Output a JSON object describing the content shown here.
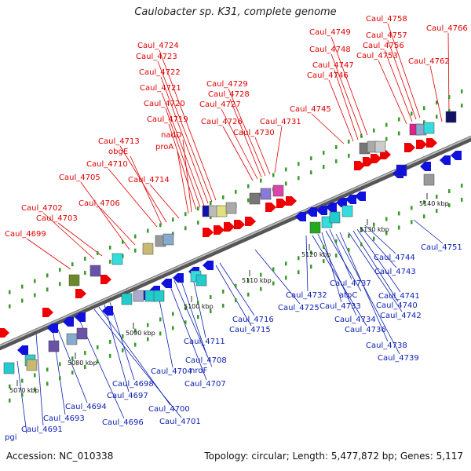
{
  "title": "Caulobacter sp. K31, complete genome",
  "footer": {
    "accession": "Accession: NC_010338",
    "summary": "Topology: circular; Length: 5,477,872 bp; Genes: 5,117"
  },
  "colors": {
    "forward": "#ee0000",
    "reverse": "#1111dd",
    "label_red": "#e00000",
    "label_blue": "#0a1fb0",
    "tick": "#3a9a2a"
  },
  "ticks": [
    "5070 kbp",
    "5080 kbp",
    "5090 kbp",
    "5100 kbp",
    "5110 kbp",
    "5120 kbp",
    "5130 kbp",
    "5140 kbp"
  ],
  "top_labels": [
    "Caul_4766",
    "Caul_4758",
    "Caul_4757",
    "Caul_4756",
    "Caul_4753",
    "Caul_4762",
    "Caul_4749",
    "Caul_4748",
    "Caul_4747",
    "Caul_4746",
    "Caul_4745",
    "Caul_4731",
    "Caul_4730",
    "Caul_4729",
    "Caul_4728",
    "Caul_4727",
    "Caul_4726",
    "Caul_4724",
    "Caul_4723",
    "Caul_4722",
    "Caul_4721",
    "Caul_4720",
    "Caul_4719",
    "nadD",
    "proA",
    "Caul_4713",
    "obgE",
    "Caul_4710",
    "Caul_4714",
    "Caul_4705",
    "Caul_4706",
    "Caul_4702",
    "Caul_4703",
    "Caul_4699"
  ],
  "bottom_labels": [
    "Caul_4751",
    "Caul_4744",
    "Caul_4743",
    "Caul_4741",
    "Caul_4740",
    "Caul_4742",
    "Caul_4732",
    "Caul_4737",
    "atpC",
    "Caul_4733",
    "Caul_4734",
    "Caul_4736",
    "Caul_4738",
    "Caul_4739",
    "Caul_4725",
    "Caul_4716",
    "Caul_4715",
    "Caul_4711",
    "Caul_4708",
    "nrdF",
    "Caul_4707",
    "Caul_4704",
    "Caul_4698",
    "Caul_4697",
    "Caul_4700",
    "Caul_4701",
    "Caul_4694",
    "Caul_4693",
    "Caul_4696",
    "Caul_4691",
    "pgi"
  ]
}
